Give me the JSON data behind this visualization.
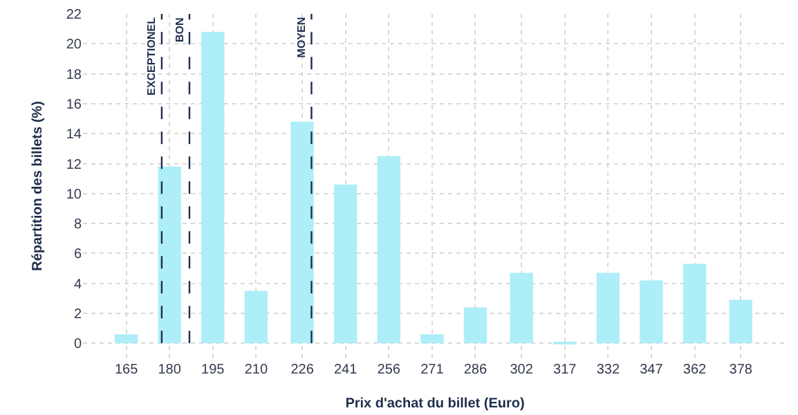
{
  "chart_data": {
    "type": "bar",
    "xlabel": "Prix d'achat du billet (Euro)",
    "ylabel": "Répartition des billets (%)",
    "x": [
      165,
      180,
      195,
      210,
      226,
      241,
      256,
      271,
      286,
      302,
      317,
      332,
      347,
      362,
      378
    ],
    "values": [
      0.6,
      11.8,
      20.8,
      3.5,
      14.8,
      10.6,
      12.5,
      0.6,
      2.4,
      4.7,
      0.1,
      4.7,
      4.2,
      5.3,
      2.9
    ],
    "color": "#aeeef8",
    "xlim": [
      150,
      394
    ],
    "xticks": [
      165,
      180,
      195,
      210,
      226,
      241,
      256,
      271,
      286,
      302,
      317,
      332,
      347,
      362,
      378
    ],
    "ylim": [
      -1,
      22
    ],
    "yticks": [
      0,
      2,
      4,
      6,
      8,
      10,
      12,
      14,
      16,
      18,
      20,
      22
    ],
    "grid": true,
    "ref_lines": [
      {
        "axis": "x",
        "value": 177.3,
        "label": "EXCEPTIONEL",
        "color": "#1f2d4d",
        "line_style": "dashed"
      },
      {
        "axis": "x",
        "value": 186.9,
        "label": "BON",
        "color": "#1f2d4d",
        "line_style": "dashed"
      },
      {
        "axis": "x",
        "value": 229.2,
        "label": "MOYEN",
        "color": "#1f2d4d",
        "line_style": "dashed"
      }
    ]
  }
}
